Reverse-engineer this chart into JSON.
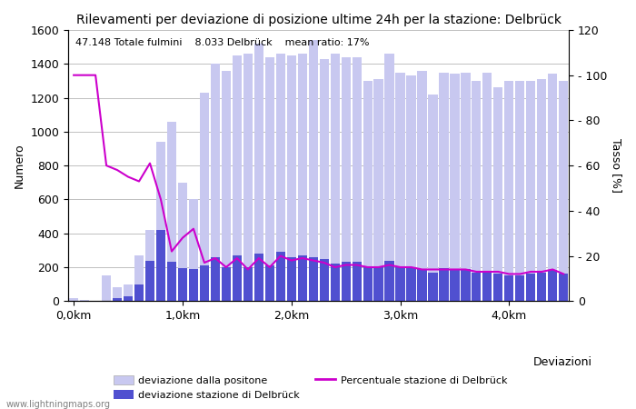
{
  "title": "Rilevamenti per deviazione di posizione ultime 24h per la stazione: Delbrück",
  "annotation": "47.148 Totale fulmini    8.033 Delbrück    mean ratio: 17%",
  "ylabel_left": "Numero",
  "ylabel_right": "Tasso [%]",
  "xlabel_right": "Deviazioni",
  "xtick_positions": [
    0,
    10,
    20,
    30,
    40
  ],
  "xtick_labels": [
    "0,0km",
    "1,0km",
    "2,0km",
    "3,0km",
    "4,0km"
  ],
  "ytick_left": [
    0,
    200,
    400,
    600,
    800,
    1000,
    1200,
    1400,
    1600
  ],
  "ytick_right_vals": [
    0,
    20,
    40,
    60,
    80,
    100,
    120
  ],
  "ytick_right_labels": [
    "0",
    "- 20",
    "- 40",
    "- 60",
    "- 80",
    "- 100",
    "120"
  ],
  "bar_total": [
    20,
    5,
    2,
    150,
    80,
    100,
    270,
    420,
    940,
    1060,
    700,
    600,
    1230,
    1400,
    1360,
    1450,
    1460,
    1520,
    1440,
    1460,
    1450,
    1460,
    1540,
    1430,
    1460,
    1440,
    1440,
    1300,
    1310,
    1460,
    1350,
    1330,
    1360,
    1220,
    1350,
    1340,
    1350,
    1300,
    1350,
    1260,
    1300,
    1300,
    1300,
    1310,
    1340,
    1300
  ],
  "bar_station": [
    0,
    0,
    0,
    0,
    20,
    30,
    100,
    240,
    420,
    230,
    195,
    190,
    210,
    260,
    200,
    270,
    200,
    280,
    210,
    290,
    260,
    270,
    260,
    250,
    220,
    230,
    230,
    200,
    200,
    240,
    200,
    200,
    190,
    170,
    195,
    185,
    190,
    170,
    175,
    165,
    150,
    150,
    165,
    170,
    185,
    160
  ],
  "line_percent": [
    100,
    100,
    100,
    60,
    58,
    55,
    53,
    61,
    45,
    22,
    28,
    32,
    17,
    19,
    15,
    19,
    14,
    19,
    15,
    20,
    18,
    19,
    18,
    17,
    15,
    16,
    16,
    15,
    15,
    16,
    15,
    15,
    14,
    14,
    14,
    14,
    14,
    13,
    13,
    13,
    12,
    12,
    13,
    13,
    14,
    12
  ],
  "color_bar_total": "#c8c8f0",
  "color_bar_station": "#5050d0",
  "color_line": "#cc00cc",
  "color_bg": "#ffffff",
  "color_grid": "#c0c0c0",
  "legend_labels": [
    "deviazione dalla positone",
    "deviazione stazione di Delbrück",
    "Percentuale stazione di Delbrück"
  ],
  "watermark": "www.lightningmaps.org",
  "ylim_left": [
    0,
    1600
  ],
  "ylim_right": [
    0,
    120
  ],
  "bar_width": 0.85,
  "title_fontsize": 10,
  "axis_fontsize": 9,
  "annotation_fontsize": 8,
  "legend_fontsize": 8,
  "watermark_fontsize": 7
}
